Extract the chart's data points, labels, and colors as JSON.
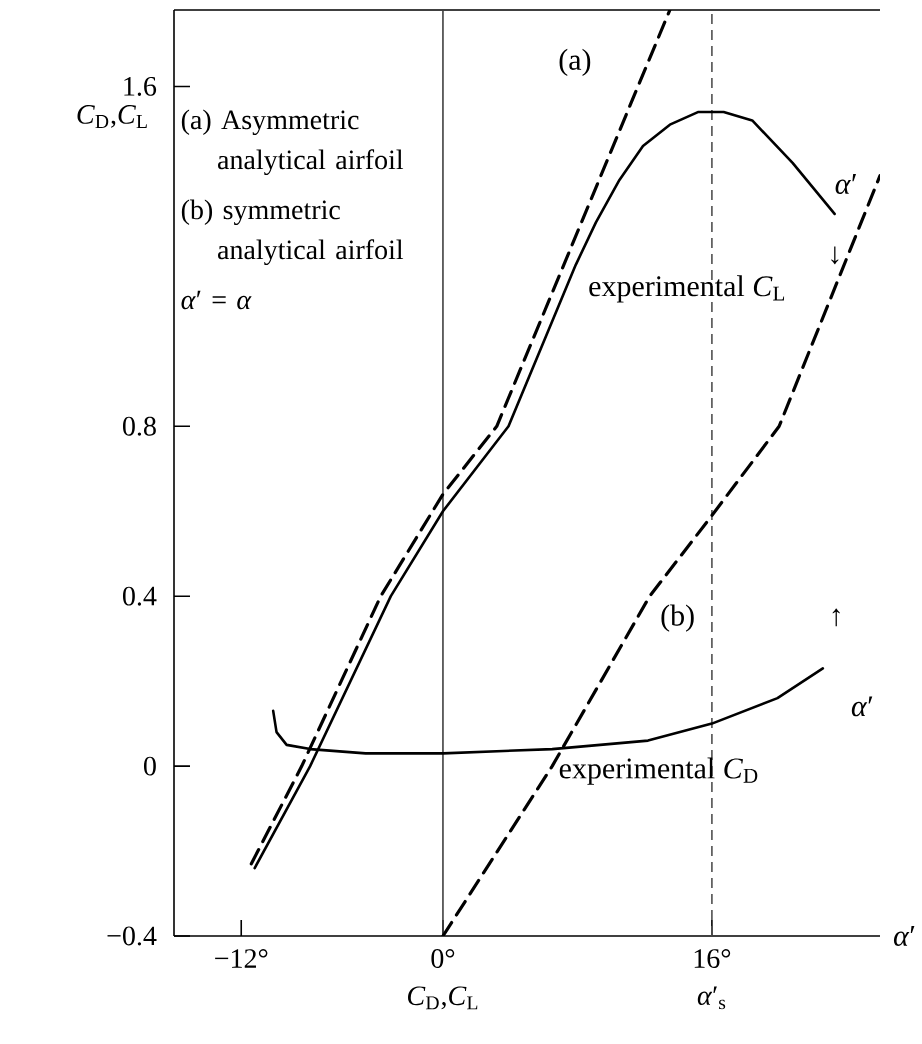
{
  "chart_data": {
    "type": "line",
    "xlabel": "*α*′",
    "ylabel": "*C*$_{D}$,*C*$_{L}$",
    "xlim": [
      -16,
      26
    ],
    "ylim": [
      -0.4,
      1.78
    ],
    "xticks": [
      {
        "value": -12,
        "label": "−12°"
      },
      {
        "value": 0,
        "label": "0°"
      },
      {
        "value": 16,
        "label": "16°"
      }
    ],
    "yticks": [
      {
        "value": -0.4,
        "label": "−0.4"
      },
      0,
      0.4,
      0.8,
      1.6
    ],
    "series": [
      {
        "name": "(a)",
        "color": "#000000",
        "line_style": "dashed",
        "x": [
          -11.4,
          -8.4,
          -3.7,
          0,
          3.2,
          11.6,
          13.5
        ],
        "values": [
          -0.23,
          0,
          0.4,
          0.64,
          0.8,
          1.6,
          1.78
        ]
      },
      {
        "name": "experimental *C*$_{L}$",
        "color": "#000000",
        "line_style": "solid",
        "x": [
          -11.2,
          -7.9,
          -3.1,
          0,
          3.9,
          7.9,
          9.1,
          10.5,
          11.9,
          13.5,
          15.2,
          16.7,
          18.4,
          20.8,
          23.3
        ],
        "values": [
          -0.24,
          0,
          0.4,
          0.6,
          0.8,
          1.18,
          1.28,
          1.38,
          1.46,
          1.51,
          1.54,
          1.54,
          1.52,
          1.42,
          1.3
        ]
      },
      {
        "name": "(b)",
        "color": "#000000",
        "line_style": "dashed",
        "x": [
          0,
          6.5,
          12.3,
          16,
          20,
          26
        ],
        "values": [
          -0.4,
          0,
          0.4,
          0.59,
          0.8,
          1.39
        ]
      },
      {
        "name": "experimental *C*$_{D}$",
        "color": "#000000",
        "line_style": "solid",
        "x": [
          -10.1,
          -9.9,
          -9.3,
          -7.9,
          -4.6,
          0,
          6.5,
          12.2,
          16,
          19.9,
          22.6
        ],
        "values": [
          0.13,
          0.08,
          0.05,
          0.04,
          0.03,
          0.03,
          0.04,
          0.06,
          0.1,
          0.16,
          0.23
        ]
      }
    ],
    "ref_lines": [
      {
        "axis": "x",
        "value": 0,
        "label": "*C*$_{D}$,*C*$_{L}$",
        "color": "#404040",
        "line_style": "solid"
      },
      {
        "axis": "x",
        "value": 16,
        "label": "*α*′$_{s}$",
        "color": "#505050",
        "line_style": "dashed"
      }
    ],
    "annotations": [
      "(a) Asymmetric analytical airfoil",
      "(b) symmetric analytical airfoil",
      "*α*′ = *α*",
      "*α*′",
      "↓",
      "↑",
      "*α*′"
    ]
  }
}
